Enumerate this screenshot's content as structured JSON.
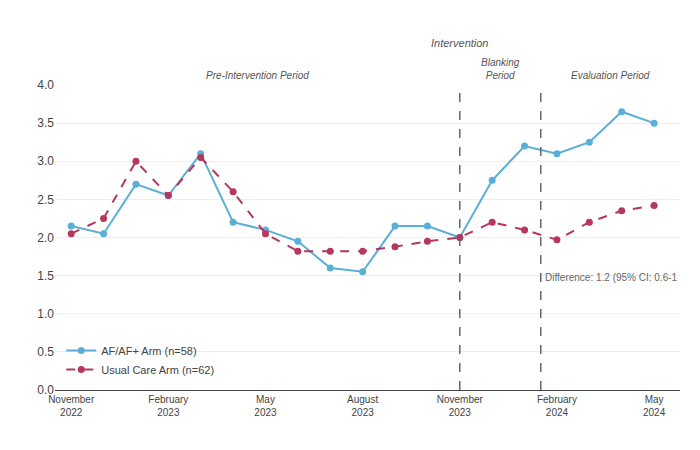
{
  "chart_data": {
    "type": "line",
    "categories": [
      "November\n2022",
      null,
      null,
      "February\n2023",
      null,
      null,
      "May\n2023",
      null,
      null,
      "August\n2023",
      null,
      null,
      "November\n2023",
      null,
      null,
      "February\n2024",
      null,
      null,
      "May\n2024"
    ],
    "series": [
      {
        "name": "AF/AF+ Arm (n=58)",
        "color": "#5baed6",
        "line_style": "solid",
        "marker": "circle",
        "values": [
          2.15,
          2.05,
          2.7,
          2.55,
          3.1,
          2.2,
          2.1,
          1.95,
          1.6,
          1.55,
          2.15,
          2.15,
          2.0,
          2.75,
          3.2,
          3.1,
          3.25,
          3.65,
          3.5
        ]
      },
      {
        "name": "Usual Care Arm (n=62)",
        "color": "#b5375e",
        "line_style": "dashed",
        "marker": "circle",
        "values": [
          2.05,
          2.25,
          3.0,
          2.55,
          3.05,
          2.6,
          2.05,
          1.82,
          1.82,
          1.82,
          1.88,
          1.95,
          2.0,
          2.2,
          2.1,
          1.97,
          2.2,
          2.35,
          2.42
        ]
      }
    ],
    "xlim": [
      -0.5,
      18.8
    ],
    "ylim": [
      0,
      4.0
    ],
    "yticks": [
      {
        "value": 0,
        "label": "0.0"
      },
      0.5,
      {
        "value": 1,
        "label": "1.0"
      },
      1.5,
      {
        "value": 2,
        "label": "2.0"
      },
      2.5,
      {
        "value": 3,
        "label": "3.0"
      },
      3.5,
      {
        "value": 4,
        "label": "4.0"
      }
    ],
    "grid": true,
    "legend": "lower left",
    "vlines": [
      {
        "x": 12,
        "label": "Intervention"
      },
      {
        "x": 14.5
      }
    ],
    "periods": [
      "Pre-Intervention Period",
      "Blanking\nPeriod",
      "Evaluation Period"
    ],
    "annotations": [
      "Difference: 1.2 (95% CI: 0.6-1"
    ]
  }
}
